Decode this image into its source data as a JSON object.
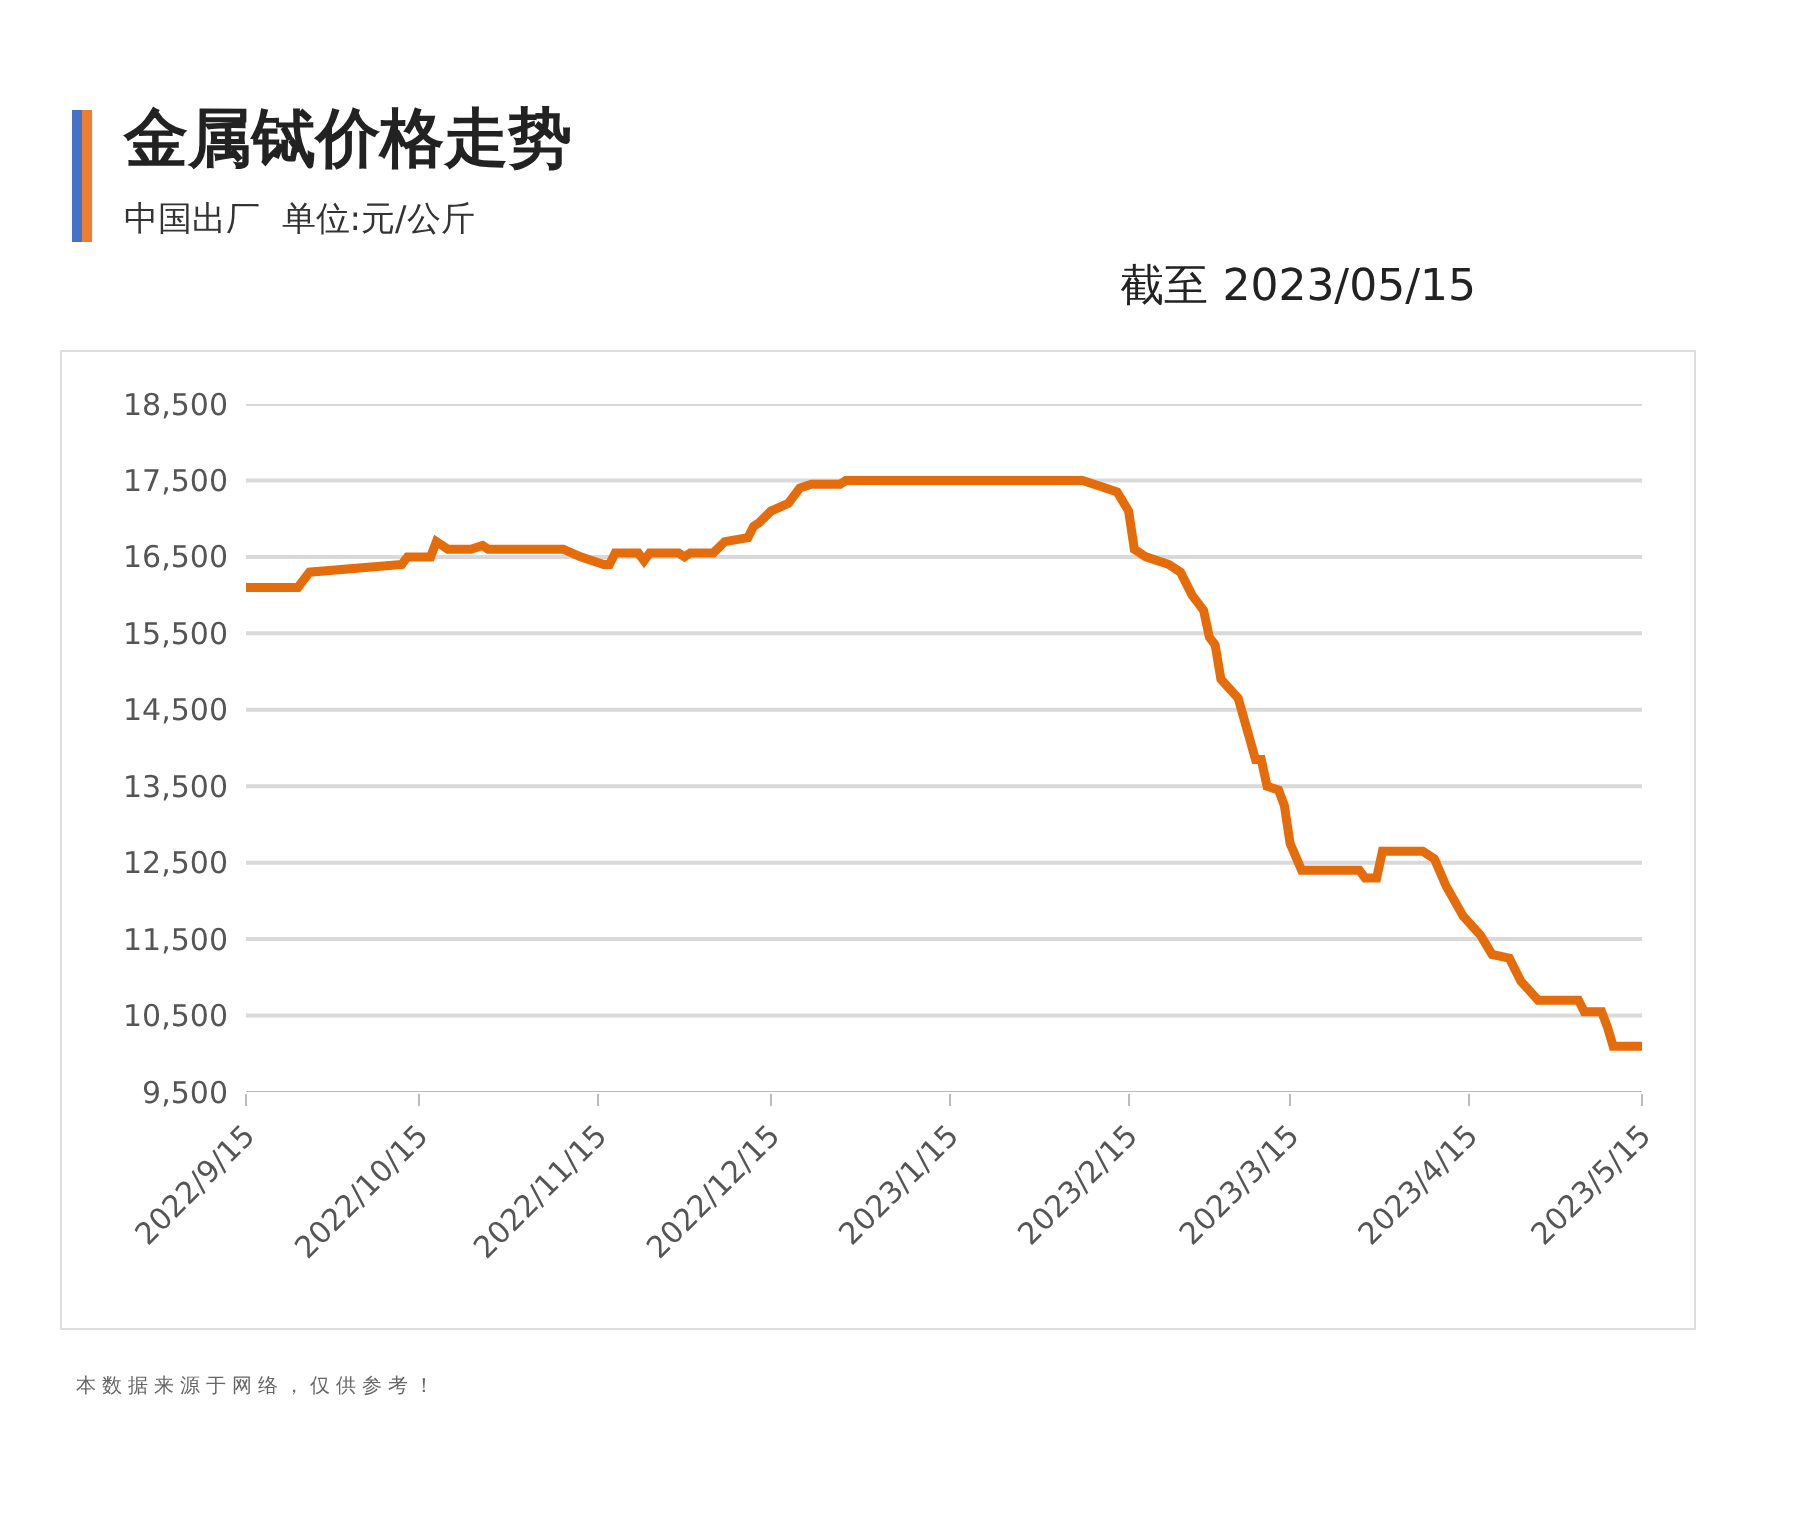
{
  "chart_data": {
    "type": "line",
    "title": "金属铽价格走势",
    "subtitle": "中国出厂  单位:元/公斤",
    "annotations": [
      "截至 2023/05/15",
      "本数据来源于网络，仅供参考！"
    ],
    "x": [
      "2022-09-15",
      "2022-09-24",
      "2022-09-26",
      "2022-10-12",
      "2022-10-13",
      "2022-10-17",
      "2022-10-18",
      "2022-10-20",
      "2022-10-24",
      "2022-10-26",
      "2022-10-27",
      "2022-11-09",
      "2022-11-12",
      "2022-11-16",
      "2022-11-17",
      "2022-11-18",
      "2022-11-22",
      "2022-11-23",
      "2022-11-24",
      "2022-11-29",
      "2022-11-30",
      "2022-12-01",
      "2022-12-05",
      "2022-12-07",
      "2022-12-11",
      "2022-12-12",
      "2022-12-13",
      "2022-12-15",
      "2022-12-18",
      "2022-12-20",
      "2022-12-22",
      "2022-12-27",
      "2022-12-28",
      "2023-02-07",
      "2023-02-09",
      "2023-02-11",
      "2023-02-13",
      "2023-02-15",
      "2023-02-16",
      "2023-02-18",
      "2023-02-22",
      "2023-02-24",
      "2023-02-26",
      "2023-02-28",
      "2023-03-01",
      "2023-03-02",
      "2023-03-03",
      "2023-03-06",
      "2023-03-09",
      "2023-03-10",
      "2023-03-11",
      "2023-03-13",
      "2023-03-14",
      "2023-03-15",
      "2023-03-17",
      "2023-03-27",
      "2023-03-28",
      "2023-03-30",
      "2023-03-31",
      "2023-04-07",
      "2023-04-09",
      "2023-04-11",
      "2023-04-14",
      "2023-04-17",
      "2023-04-19",
      "2023-04-22",
      "2023-04-24",
      "2023-04-27",
      "2023-05-04",
      "2023-05-05",
      "2023-05-08",
      "2023-05-09",
      "2023-05-10",
      "2023-05-15"
    ],
    "series": [
      {
        "color": "#e46c0a",
        "values": [
          16100,
          16100,
          16300,
          16400,
          16500,
          16500,
          16700,
          16600,
          16600,
          16650,
          16600,
          16600,
          16500,
          16400,
          16400,
          16550,
          16550,
          16450,
          16550,
          16550,
          16500,
          16550,
          16550,
          16700,
          16750,
          16900,
          16950,
          17100,
          17200,
          17400,
          17450,
          17450,
          17500,
          17500,
          17450,
          17400,
          17350,
          17100,
          16600,
          16500,
          16400,
          16300,
          16000,
          15800,
          15450,
          15350,
          14900,
          14650,
          13850,
          13850,
          13500,
          13450,
          13250,
          12750,
          12400,
          12400,
          12300,
          12300,
          12650,
          12650,
          12550,
          12200,
          11800,
          11550,
          11300,
          11250,
          10950,
          10700,
          10700,
          10550,
          10550,
          10350,
          10100,
          10100
        ]
      }
    ],
    "xlim": [
      "2022-09-15",
      "2023-05-15"
    ],
    "xticks": [
      {
        "value": "2022-09-15",
        "label": "2022/9/15"
      },
      {
        "value": "2022-10-15",
        "label": "2022/10/15"
      },
      {
        "value": "2022-11-15",
        "label": "2022/11/15"
      },
      {
        "value": "2022-12-15",
        "label": "2022/12/15"
      },
      {
        "value": "2023-01-15",
        "label": "2023/1/15"
      },
      {
        "value": "2023-02-15",
        "label": "2023/2/15"
      },
      {
        "value": "2023-03-15",
        "label": "2023/3/15"
      },
      {
        "value": "2023-04-15",
        "label": "2023/4/15"
      },
      {
        "value": "2023-05-15",
        "label": "2023/5/15"
      }
    ],
    "ylim": [
      9500,
      18500
    ],
    "yticks": [
      {
        "value": 9500,
        "label": "9,500"
      },
      {
        "value": 10500,
        "label": "10,500"
      },
      {
        "value": 11500,
        "label": "11,500"
      },
      {
        "value": 12500,
        "label": "12,500"
      },
      {
        "value": 13500,
        "label": "13,500"
      },
      {
        "value": 14500,
        "label": "14,500"
      },
      {
        "value": 15500,
        "label": "15,500"
      },
      {
        "value": 16500,
        "label": "16,500"
      },
      {
        "value": 17500,
        "label": "17,500"
      },
      {
        "value": 18500,
        "label": "18,500"
      }
    ],
    "grid": "y",
    "marker": "none",
    "line_style": "solid"
  }
}
